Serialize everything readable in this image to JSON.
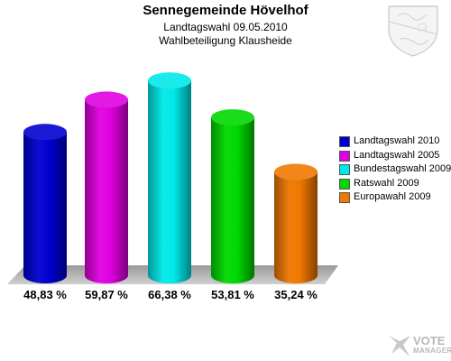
{
  "title": "Sennegemeinde Hövelhof",
  "subtitle_1": "Landtagswahl 09.05.2010",
  "subtitle_2": "Wahlbeteiligung Klausheide",
  "watermark": {
    "line1": "VOTE",
    "line2": "MANAGER"
  },
  "chart_data": {
    "type": "bar",
    "title": "Sennegemeinde Hövelhof",
    "subtitle": "Landtagswahl 09.05.2010 / Wahlbeteiligung Klausheide",
    "categories": [
      "Landtagswahl 2010",
      "Landtagswahl 2005",
      "Bundestagswahl 2009",
      "Ratswahl 2009",
      "Europawahl 2009"
    ],
    "values": [
      48.83,
      59.87,
      66.38,
      53.81,
      35.24
    ],
    "value_labels": [
      "48,83 %",
      "59,87 %",
      "66,38 %",
      "53,81 %",
      "35,24 %"
    ],
    "colors": [
      "#0000d0",
      "#e000e0",
      "#00e8e8",
      "#00d800",
      "#f07800"
    ],
    "legend_position": "right",
    "grid": false,
    "ylim": [
      0,
      80
    ]
  }
}
